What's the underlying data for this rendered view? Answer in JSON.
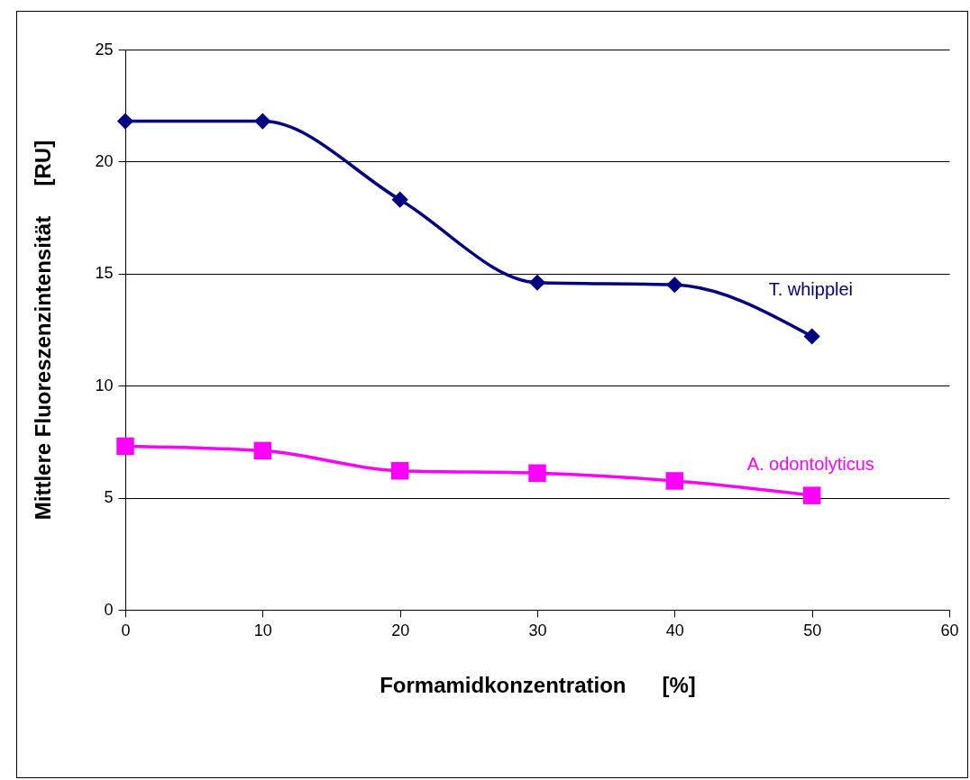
{
  "chart_data": {
    "type": "line",
    "xlabel": "Formamidkonzentration      [%]",
    "ylabel": "Mittlere Fluoreszenzintensität     [RU]",
    "x": [
      0,
      10,
      20,
      30,
      40,
      50
    ],
    "series": [
      {
        "name": "T. whipplei",
        "color": "#000080",
        "marker": "diamond",
        "values": [
          21.8,
          21.8,
          18.3,
          14.6,
          14.5,
          12.2
        ]
      },
      {
        "name": "A. odontolyticus",
        "color": "#ff00ff",
        "marker": "square",
        "values": [
          7.3,
          7.1,
          6.2,
          6.1,
          5.75,
          5.1
        ]
      }
    ],
    "xlim": [
      0,
      60
    ],
    "xticks": [
      0,
      10,
      20,
      30,
      40,
      50,
      60
    ],
    "ylim": [
      0,
      25
    ],
    "yticks": [
      0,
      5,
      10,
      15,
      20,
      25
    ],
    "grid": "y"
  }
}
